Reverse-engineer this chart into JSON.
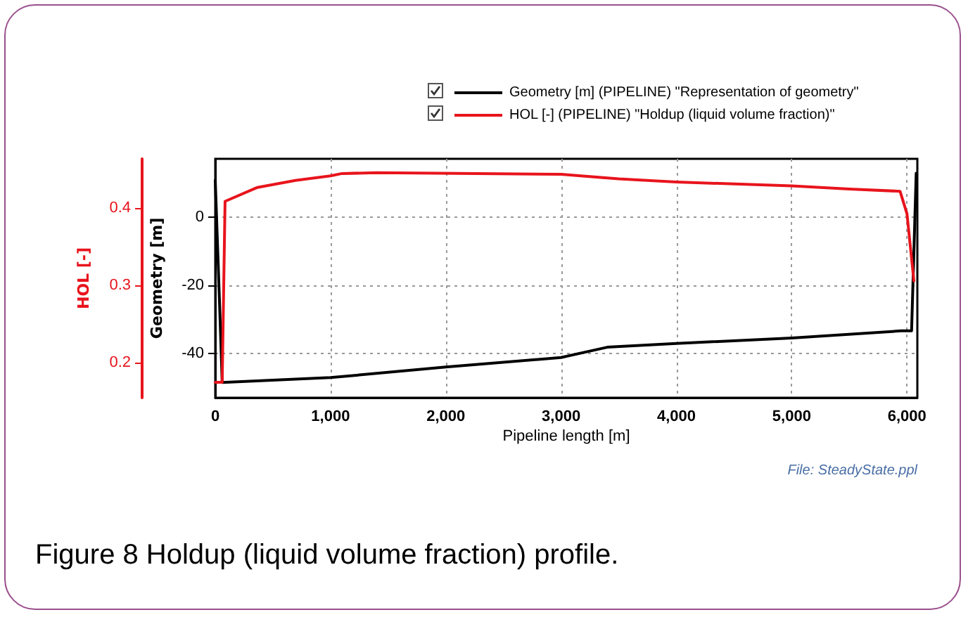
{
  "chart_data": {
    "type": "line",
    "title": "Figure 8 Holdup (liquid volume fraction) profile.",
    "xlabel": "Pipeline length [m]",
    "ylabel": "Geometry [m]",
    "y2label": "HOL [-]",
    "annotations": [
      "File: SteadyState.ppl"
    ],
    "series": [
      {
        "name": "Geometry [m] (PIPELINE) \"Representation of geometry\"",
        "color": "#000000",
        "x": [
          0,
          40,
          60,
          1000,
          2000,
          3000,
          3400,
          4000,
          5000,
          5950,
          6040,
          6080
        ],
        "values": [
          10.7,
          -28,
          -48.5,
          -47.1,
          -44,
          -41.2,
          -38.2,
          -37.1,
          -35.5,
          -33.4,
          -33.4,
          12.8
        ]
      },
      {
        "name": "HOL [-] (PIPELINE) \"Holdup (liquid volume fraction)\"",
        "color": "#e8141c",
        "axis": "y2",
        "x": [
          0,
          60,
          85,
          366,
          695,
          1000,
          1100,
          1400,
          3000,
          3500,
          4000,
          5000,
          5500,
          5940,
          6000,
          6060
        ],
        "values": [
          0.175,
          0.175,
          0.409,
          0.427,
          0.436,
          0.442,
          0.445,
          0.446,
          0.444,
          0.438,
          0.434,
          0.429,
          0.425,
          0.422,
          0.393,
          0.306
        ]
      }
    ],
    "xlim": [
      0,
      6090
    ],
    "xticks": [
      {
        "value": 0,
        "label": "0"
      },
      {
        "value": 1000,
        "label": "1,000"
      },
      {
        "value": 2000,
        "label": "2,000"
      },
      {
        "value": 3000,
        "label": "3,000"
      },
      {
        "value": 4000,
        "label": "4,000"
      },
      {
        "value": 5000,
        "label": "5,000"
      },
      {
        "value": 6000,
        "label": "6,000"
      }
    ],
    "ylim": [
      -53,
      17
    ],
    "yticks": [
      -40,
      -20,
      0
    ],
    "y2lim": [
      0.155,
      0.464
    ],
    "y2ticks": [
      0.2,
      0.3,
      0.4
    ],
    "grid": true,
    "legend": "top",
    "marker": "none",
    "line_style": "solid"
  }
}
